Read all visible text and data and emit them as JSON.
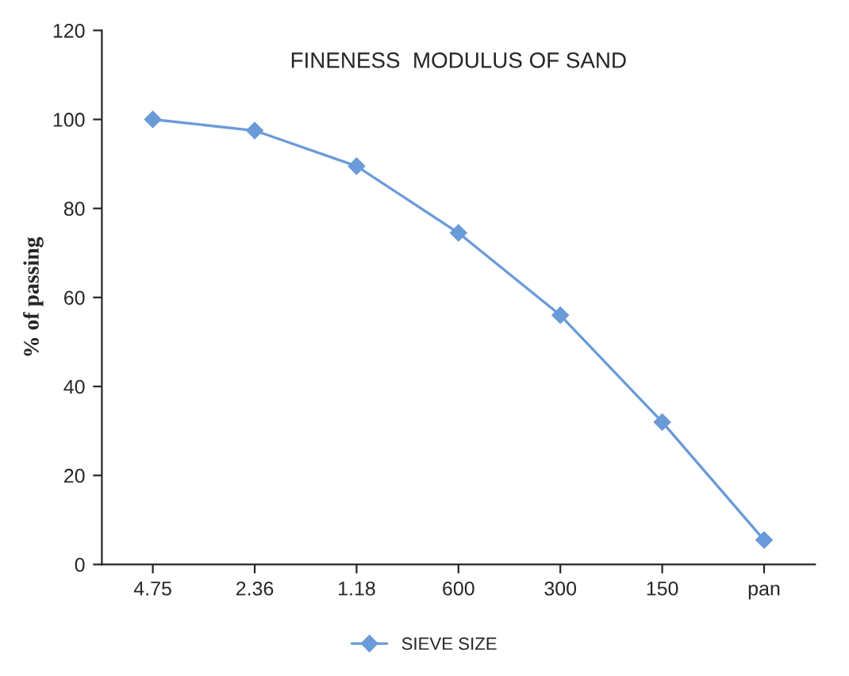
{
  "chart_data": {
    "type": "line",
    "title": "FINENESS  MODULUS OF SAND",
    "ylabel": "% of passing",
    "categories": [
      "4.75",
      "2.36",
      "1.18",
      "600",
      "300",
      "150",
      "pan"
    ],
    "series": [
      {
        "name": "SIEVE SIZE",
        "color": "#6a9bd8",
        "values": [
          100,
          97.5,
          89.5,
          74.5,
          56,
          32,
          5.5
        ]
      }
    ],
    "ylim": [
      0,
      120
    ],
    "yticks": [
      0,
      20,
      40,
      60,
      80,
      100,
      120
    ],
    "grid": false,
    "legend": "bottom",
    "marker": "diamond",
    "line_style": "solid"
  }
}
